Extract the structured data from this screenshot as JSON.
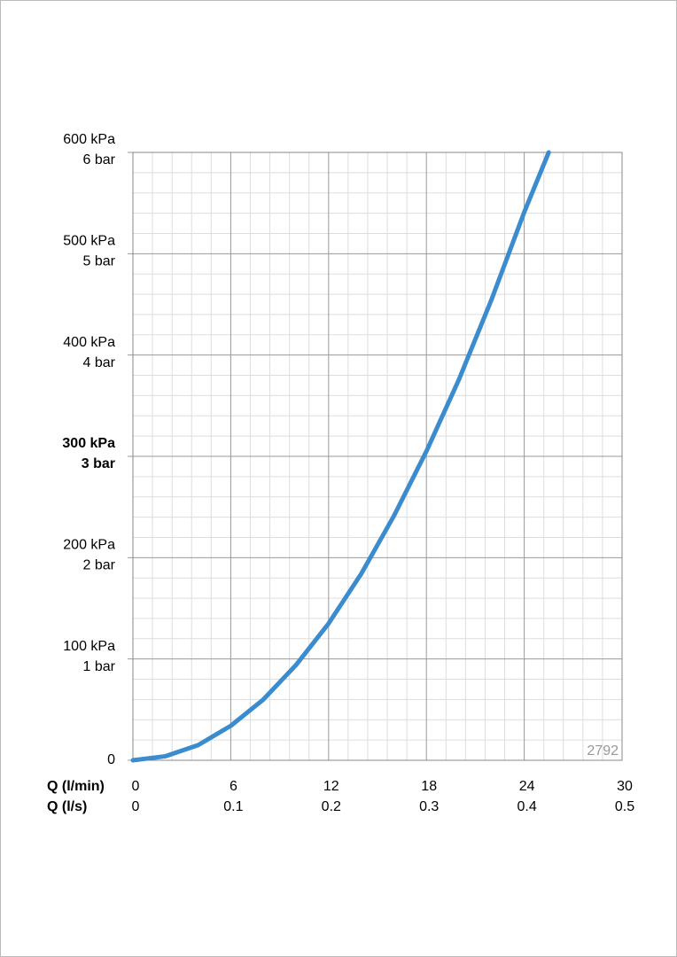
{
  "chart_data": {
    "type": "line",
    "xlabel": "Q (l/min)",
    "x2label": "Q (l/s)",
    "x": [
      0,
      2,
      4,
      6,
      8,
      10,
      12,
      14,
      16,
      18,
      20,
      22,
      24,
      25.5
    ],
    "series": [
      {
        "color": "#3a8ccf",
        "values": [
          0,
          4,
          15,
          34,
          60,
          94,
          135,
          184,
          241,
          305,
          376,
          455,
          541,
          600
        ]
      }
    ],
    "xlim": [
      0,
      30
    ],
    "xticks": [
      0,
      6,
      12,
      18,
      24,
      30
    ],
    "x2lim": [
      0,
      0.5
    ],
    "x2ticks": [
      0,
      0.1,
      0.2,
      0.3,
      0.4,
      0.5
    ],
    "ylim": [
      0,
      600
    ],
    "yticks": [
      0,
      {
        "value": 100,
        "label": "100 kPa"
      },
      {
        "value": 200,
        "label": "200 kPa"
      },
      {
        "value": 300,
        "label": "300 kPa"
      },
      {
        "value": 400,
        "label": "400 kPa"
      },
      {
        "value": 500,
        "label": "500 kPa"
      },
      {
        "value": 600,
        "label": "600 kPa"
      }
    ],
    "y2lim": [
      0,
      6
    ],
    "y2ticks": [
      {
        "value": 1,
        "label": "1 bar"
      },
      {
        "value": 2,
        "label": "2 bar"
      },
      {
        "value": 3,
        "label": "3 bar"
      },
      {
        "value": 4,
        "label": "4 bar"
      },
      {
        "value": 5,
        "label": "5 bar"
      },
      {
        "value": 6,
        "label": "6 bar"
      }
    ],
    "highlight_ytick": 300,
    "grid": true,
    "minor_grid_divisions": 5,
    "annotation": "2792"
  }
}
